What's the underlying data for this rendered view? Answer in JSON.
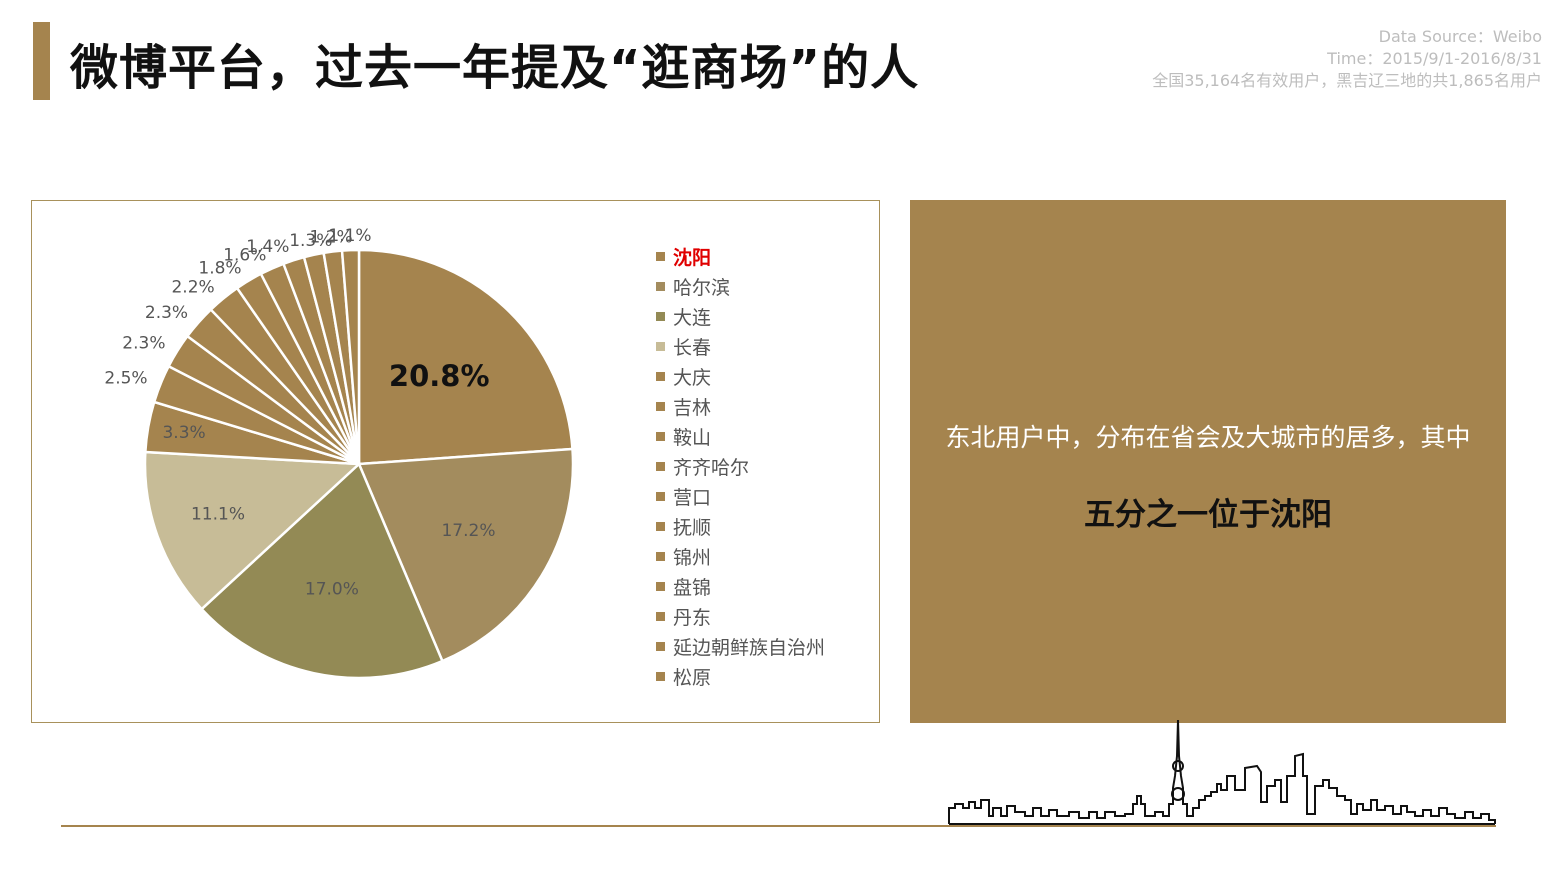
{
  "header": {
    "title": "微博平台，过去一年提及“逛商场”的人",
    "source_line1": "Data Source：Weibo",
    "source_line2": "Time：2015/9/1-2016/8/31",
    "source_line3": "全国35,164名有效用户，黑吉辽三地的共1,865名用户"
  },
  "info": {
    "line1": "东北用户中，分布在省会及大城市的居多，其中",
    "line2": "五分之一位于沈阳"
  },
  "colors": {
    "accent": "#a5844e",
    "highlight": "#e00000"
  },
  "chart_data": {
    "type": "pie",
    "title": "",
    "categories": [
      "沈阳",
      "哈尔滨",
      "大连",
      "长春",
      "大庆",
      "吉林",
      "鞍山",
      "齐齐哈尔",
      "营口",
      "抚顺",
      "锦州",
      "盘锦",
      "丹东",
      "延边朝鲜族自治州",
      "松原"
    ],
    "values": [
      20.8,
      17.2,
      17.0,
      11.1,
      3.3,
      2.5,
      2.3,
      2.3,
      2.2,
      1.8,
      1.6,
      1.4,
      1.3,
      1.2,
      1.1
    ],
    "labels": [
      "20.8%",
      "17.2%",
      "17.0%",
      "11.1%",
      "3.3%",
      "2.5%",
      "2.3%",
      "2.3%",
      "2.2%",
      "1.8%",
      "1.6%",
      "1.4%",
      "1.3%",
      "1.2%",
      "1.1%"
    ],
    "colors": [
      "#a5844e",
      "#a38c5e",
      "#938a55",
      "#c7bc97",
      "#a5844e",
      "#a5844e",
      "#a5844e",
      "#a5844e",
      "#a5844e",
      "#a5844e",
      "#a5844e",
      "#a5844e",
      "#a5844e",
      "#a5844e",
      "#a5844e"
    ],
    "legend_position": "right",
    "highlighted_category": "沈阳"
  }
}
